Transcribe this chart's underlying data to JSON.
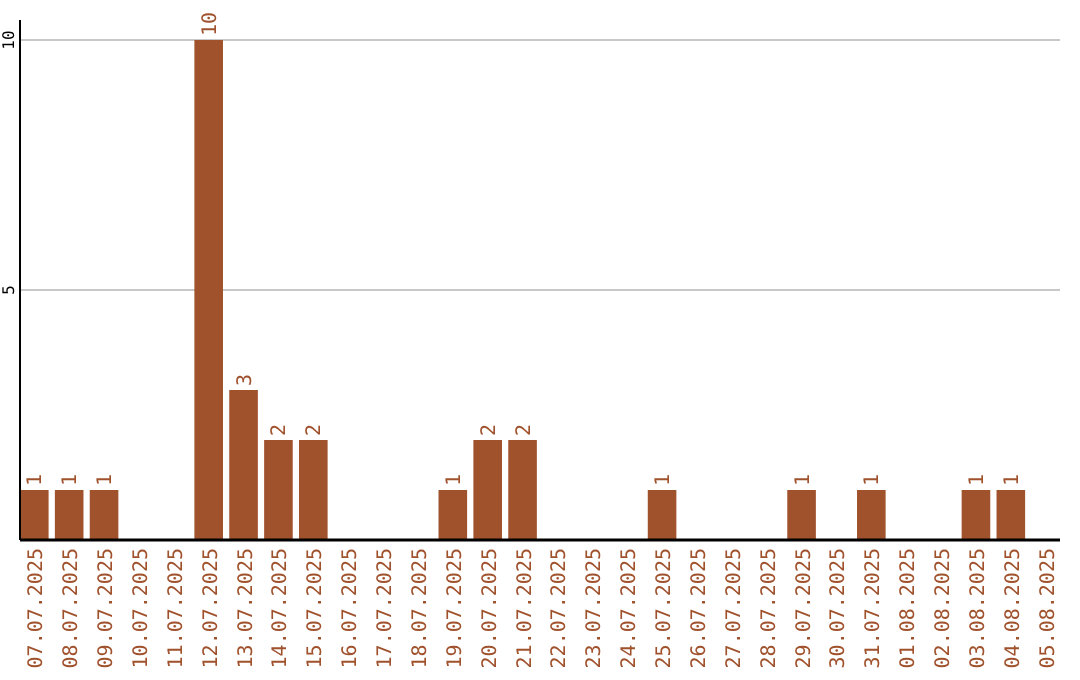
{
  "chart_data": {
    "type": "bar",
    "categories": [
      "07.07.2025",
      "08.07.2025",
      "09.07.2025",
      "10.07.2025",
      "11.07.2025",
      "12.07.2025",
      "13.07.2025",
      "14.07.2025",
      "15.07.2025",
      "16.07.2025",
      "17.07.2025",
      "18.07.2025",
      "19.07.2025",
      "20.07.2025",
      "21.07.2025",
      "22.07.2025",
      "23.07.2025",
      "24.07.2025",
      "25.07.2025",
      "26.07.2025",
      "27.07.2025",
      "28.07.2025",
      "29.07.2025",
      "30.07.2025",
      "31.07.2025",
      "01.08.2025",
      "02.08.2025",
      "03.08.2025",
      "04.08.2025",
      "05.08.2025"
    ],
    "values": [
      1,
      1,
      1,
      0,
      0,
      10,
      3,
      2,
      2,
      0,
      0,
      0,
      1,
      2,
      2,
      0,
      0,
      0,
      1,
      0,
      0,
      0,
      1,
      0,
      1,
      0,
      0,
      1,
      1,
      0
    ],
    "value_labels": [
      "1",
      "1",
      "1",
      null,
      null,
      "10",
      "3",
      "2",
      "2",
      null,
      null,
      null,
      "1",
      "2",
      "2",
      null,
      null,
      null,
      "1",
      null,
      null,
      null,
      "1",
      null,
      "1",
      null,
      null,
      "1",
      "1",
      null
    ],
    "color": "#a0522d",
    "ylim": [
      0,
      10.4
    ],
    "yticks": [
      5,
      10
    ],
    "grid": "y"
  }
}
